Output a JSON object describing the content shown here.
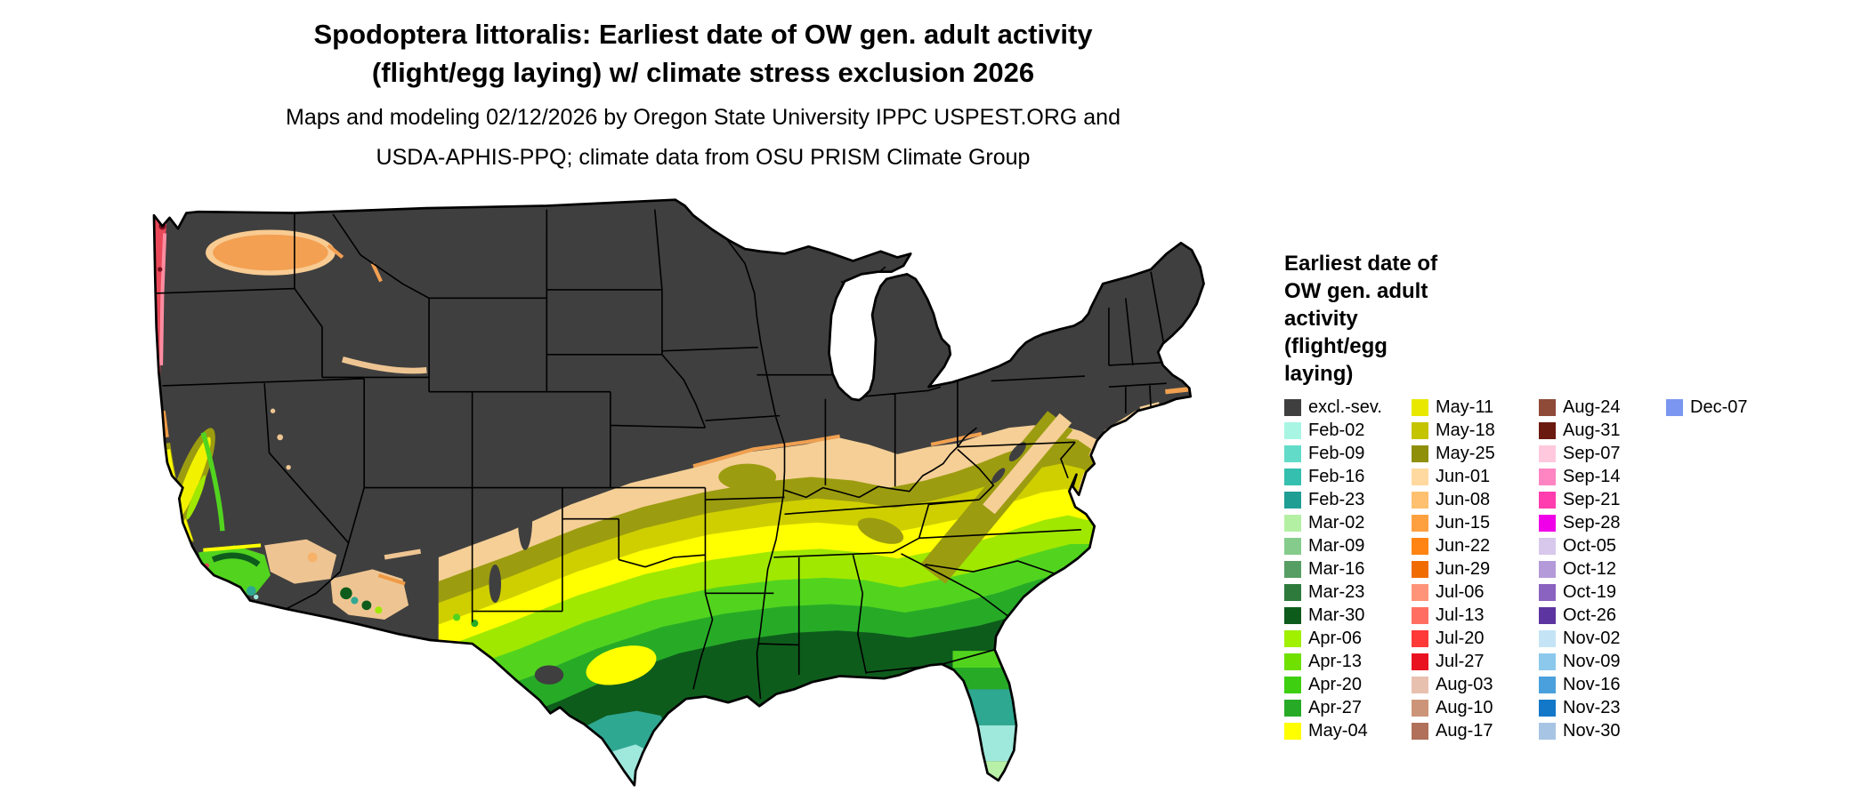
{
  "title": {
    "line1": "Spodoptera littoralis: Earliest date of OW gen. adult activity",
    "line2": "(flight/egg laying) w/ climate stress exclusion 2026"
  },
  "subtitle": {
    "line1": "Maps and modeling 02/12/2026 by Oregon State University IPPC USPEST.ORG and",
    "line2": "USDA-APHIS-PPQ; climate data from OSU PRISM Climate Group"
  },
  "legend": {
    "title": "Earliest date of OW gen. adult activity (flight/egg laying)",
    "columns": [
      [
        {
          "label": "excl.-sev.",
          "color": "#3f3f3f"
        },
        {
          "label": "Feb-02",
          "color": "#a8f5e4"
        },
        {
          "label": "Feb-09",
          "color": "#62dcc8"
        },
        {
          "label": "Feb-16",
          "color": "#35bfae"
        },
        {
          "label": "Feb-23",
          "color": "#1f9e94"
        },
        {
          "label": "Mar-02",
          "color": "#b4f0a4"
        },
        {
          "label": "Mar-09",
          "color": "#85cc8c"
        },
        {
          "label": "Mar-16",
          "color": "#569e63"
        },
        {
          "label": "Mar-23",
          "color": "#2d7a3c"
        },
        {
          "label": "Mar-30",
          "color": "#0e5c1c"
        },
        {
          "label": "Apr-06",
          "color": "#a0f000"
        },
        {
          "label": "Apr-13",
          "color": "#6fe000"
        },
        {
          "label": "Apr-20",
          "color": "#3ecf10"
        },
        {
          "label": "Apr-27",
          "color": "#27ab27"
        },
        {
          "label": "May-04",
          "color": "#ffff00"
        }
      ],
      [
        {
          "label": "May-11",
          "color": "#e8e800"
        },
        {
          "label": "May-18",
          "color": "#c4c400"
        },
        {
          "label": "May-25",
          "color": "#8f8f0a"
        },
        {
          "label": "Jun-01",
          "color": "#ffd9a0"
        },
        {
          "label": "Jun-08",
          "color": "#ffc070"
        },
        {
          "label": "Jun-15",
          "color": "#ffa040"
        },
        {
          "label": "Jun-22",
          "color": "#ff8414"
        },
        {
          "label": "Jun-29",
          "color": "#f06c00"
        },
        {
          "label": "Jul-06",
          "color": "#ff9478"
        },
        {
          "label": "Jul-13",
          "color": "#ff6f61"
        },
        {
          "label": "Jul-20",
          "color": "#ff3838"
        },
        {
          "label": "Jul-27",
          "color": "#e81220"
        },
        {
          "label": "Aug-03",
          "color": "#e8c0b0"
        },
        {
          "label": "Aug-10",
          "color": "#cc9478"
        },
        {
          "label": "Aug-17",
          "color": "#b0705a"
        }
      ],
      [
        {
          "label": "Aug-24",
          "color": "#8f4a38"
        },
        {
          "label": "Aug-31",
          "color": "#6b1a10"
        },
        {
          "label": "Sep-07",
          "color": "#ffc8dc"
        },
        {
          "label": "Sep-14",
          "color": "#ff85c2"
        },
        {
          "label": "Sep-21",
          "color": "#ff3dae"
        },
        {
          "label": "Sep-28",
          "color": "#f000e8"
        },
        {
          "label": "Oct-05",
          "color": "#d8c8ec"
        },
        {
          "label": "Oct-12",
          "color": "#b49ad8"
        },
        {
          "label": "Oct-19",
          "color": "#8a62c0"
        },
        {
          "label": "Oct-26",
          "color": "#5c35a0"
        },
        {
          "label": "Nov-02",
          "color": "#c4e4f5"
        },
        {
          "label": "Nov-09",
          "color": "#8cc8ec"
        },
        {
          "label": "Nov-16",
          "color": "#4aa0dc"
        },
        {
          "label": "Nov-23",
          "color": "#1478c8"
        },
        {
          "label": "Nov-30",
          "color": "#a8c4e4"
        }
      ],
      [
        {
          "label": "Dec-07",
          "color": "#7a96f0"
        }
      ]
    ]
  }
}
